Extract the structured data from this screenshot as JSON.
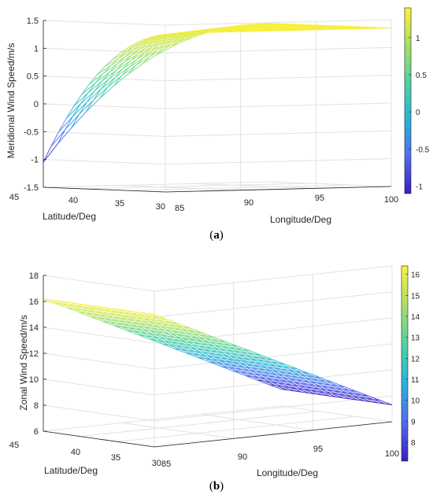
{
  "colors": {
    "gradient": [
      "#3b1fbf",
      "#4f6cf0",
      "#2ab3d8",
      "#4fd3a0",
      "#a9e066",
      "#fff23a"
    ],
    "grid": "#e2e2e2",
    "axis": "#222222"
  },
  "panels": [
    {
      "caption_letter": "a"
    },
    {
      "caption_letter": "b"
    }
  ],
  "chart_data": [
    {
      "type": "surface",
      "zlabel": "Meridional Wind Speed/m/s",
      "xlabel": "Longitude/Deg",
      "ylabel": "Latitude/Deg",
      "x_ticks": [
        "85",
        "90",
        "95",
        "100"
      ],
      "y_ticks": [
        "30",
        "35",
        "40",
        "45"
      ],
      "z_ticks": [
        "-1.5",
        "-1",
        "-0.5",
        "0",
        "0.5",
        "1",
        "1.5"
      ],
      "xlim": [
        85,
        100
      ],
      "ylim": [
        30,
        45
      ],
      "zlim": [
        -1.5,
        1.5
      ],
      "corners": {
        "lon100_lat45": 1.35,
        "lon85_lat45": -1.05,
        "lon100_lat30": 1.35,
        "lon85_lat30": 1.35
      },
      "colorbar": {
        "ticks": [
          "-1",
          "-0.5",
          "0",
          "0.5",
          "1"
        ],
        "range": [
          -1.1,
          1.4
        ]
      },
      "grid": true
    },
    {
      "type": "surface",
      "zlabel": "Zonal Wind Speed/m/s",
      "xlabel": "Longitude/Deg",
      "ylabel": "Latitude/Deg",
      "x_ticks": [
        "85",
        "90",
        "95",
        "100"
      ],
      "y_ticks": [
        "30",
        "35",
        "40",
        "45"
      ],
      "z_ticks": [
        "6",
        "8",
        "10",
        "12",
        "14",
        "16",
        "18"
      ],
      "xlim": [
        85,
        100
      ],
      "ylim": [
        30,
        45
      ],
      "zlim": [
        6,
        18
      ],
      "corners": {
        "lon100_lat45": 7.3,
        "lon85_lat45": 16.2,
        "lon100_lat30": 7.3,
        "lon85_lat30": 16.2
      },
      "colorbar": {
        "ticks": [
          "8",
          "9",
          "10",
          "11",
          "12",
          "13",
          "14",
          "15",
          "16"
        ],
        "range": [
          7.1,
          16.4
        ]
      },
      "grid": true
    }
  ]
}
